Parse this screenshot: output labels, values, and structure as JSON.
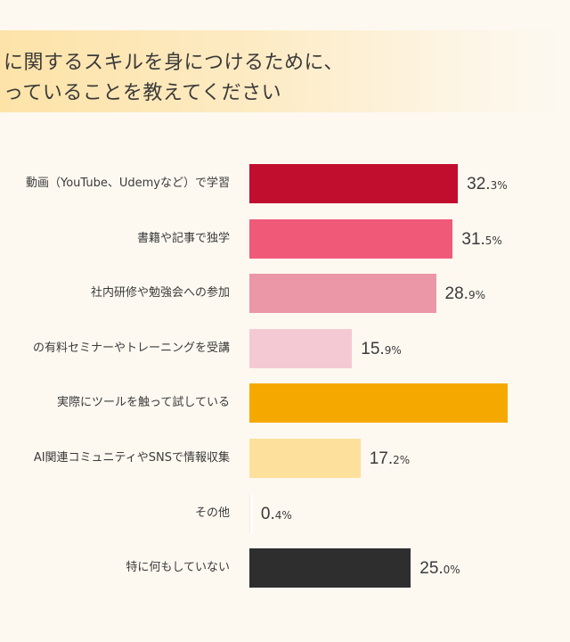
{
  "title": {
    "line1": "に関するスキルを身につけるために、",
    "line2": "っていることを教えてください"
  },
  "chart_data": {
    "type": "bar",
    "orientation": "horizontal",
    "title": "に関するスキルを身につけるために、っていることを教えてください",
    "categories": [
      "動画（YouTube、Udemyなど）で学習",
      "書籍や記事で独学",
      "社内研修や勉強会への参加",
      "の有料セミナーやトレーニングを受講",
      "実際にツールを触って試している",
      "AI関連コミュニティやSNSで情報収集",
      "その他",
      "特に何もしていない"
    ],
    "values": [
      32.3,
      31.5,
      28.9,
      15.9,
      40.0,
      17.2,
      0.4,
      25.0
    ],
    "value_labels": [
      "32.3",
      "31.5",
      "28.9",
      "15.9",
      "",
      "17.2",
      "0.4",
      "25.0"
    ],
    "unit": "%",
    "colors": [
      "#c20e2e",
      "#f05a78",
      "#eb97a8",
      "#f5c9d4",
      "#f5a800",
      "#fde09c",
      "#ffffff",
      "#2e2e2e"
    ],
    "xlabel": "",
    "ylabel": "",
    "grid": false,
    "legend": "none"
  }
}
